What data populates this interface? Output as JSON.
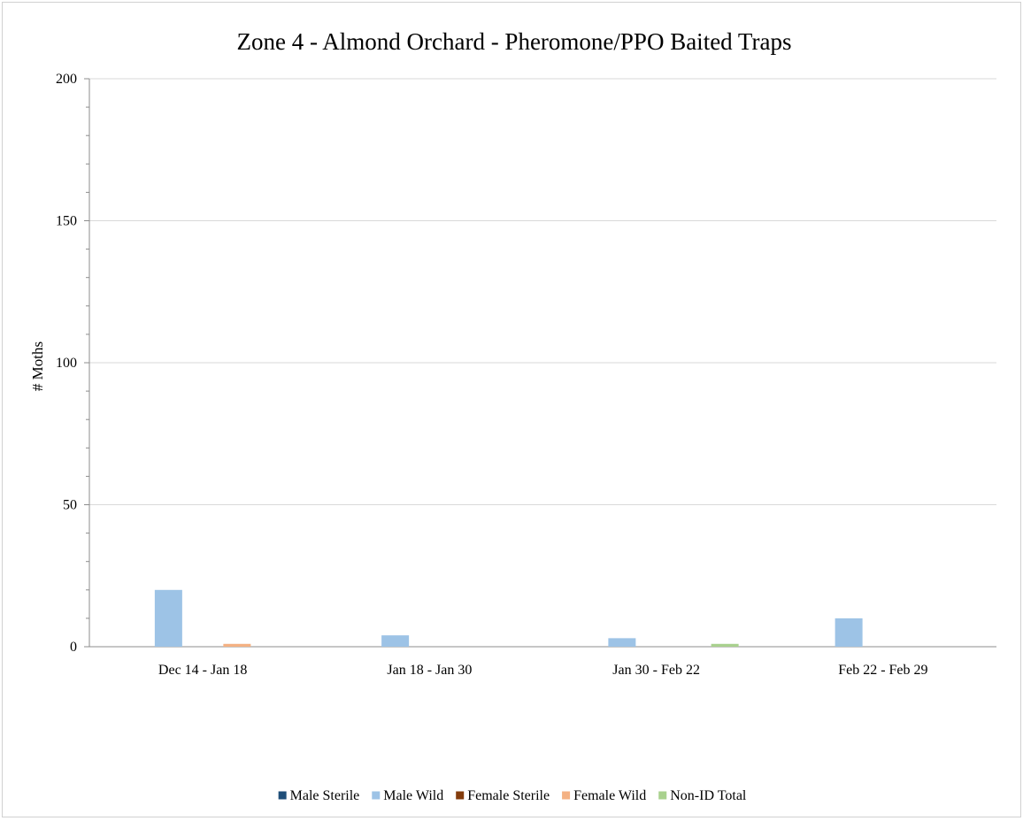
{
  "chart_data": {
    "type": "bar",
    "title": "Zone 4 - Almond Orchard - Pheromone/PPO Baited Traps",
    "xlabel": "",
    "ylabel": "# Moths",
    "ylim": [
      0,
      200
    ],
    "yticks": [
      0,
      50,
      100,
      150,
      200
    ],
    "grid": true,
    "legend_position": "bottom",
    "categories": [
      "Dec 14 - Jan 18",
      "Jan 18 - Jan 30",
      "Jan 30 - Feb 22",
      "Feb 22 - Feb 29"
    ],
    "series": [
      {
        "name": "Male Sterile",
        "color": "#1f4e79",
        "values": [
          0,
          0,
          0,
          0
        ]
      },
      {
        "name": "Male Wild",
        "color": "#9dc3e6",
        "values": [
          20,
          4,
          3,
          10
        ]
      },
      {
        "name": "Female Sterile",
        "color": "#843c0c",
        "values": [
          0,
          0,
          0,
          0
        ]
      },
      {
        "name": "Female Wild",
        "color": "#f4b183",
        "values": [
          1,
          0,
          0,
          0
        ]
      },
      {
        "name": "Non-ID Total",
        "color": "#a9d18e",
        "values": [
          0,
          0,
          1,
          0
        ]
      }
    ]
  }
}
